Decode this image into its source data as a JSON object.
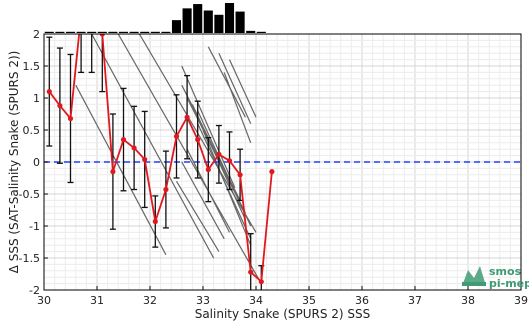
{
  "chart_data": {
    "type": "line",
    "xlabel": "Salinity Snake (SPURS 2) SSS",
    "ylabel": "Δ SSS (SAT-Salinity Snake (SPURS 2))",
    "xlim": [
      30,
      39
    ],
    "ylim": [
      -2,
      2
    ],
    "xticks": [
      "30",
      "31",
      "32",
      "33",
      "34",
      "35",
      "36",
      "37",
      "38",
      "39"
    ],
    "yticks": [
      "2",
      "1.5",
      "1",
      "0.5",
      "0",
      "-0.5",
      "-1",
      "-1.5",
      "-2"
    ],
    "grid": true,
    "zero_line": {
      "y": 0,
      "color": "#1f3fff",
      "style": "dashed"
    },
    "series": [
      {
        "color": "#e0191e",
        "points": [
          {
            "x": 30.1,
            "y": 1.1,
            "err": 0.85
          },
          {
            "x": 30.3,
            "y": 0.88,
            "err": 0.9
          },
          {
            "x": 30.5,
            "y": 0.68,
            "err": 1.0
          },
          {
            "x": 30.7,
            "y": 2.3,
            "err": 0.9
          },
          {
            "x": 30.9,
            "y": 2.3,
            "err": 0.9
          },
          {
            "x": 31.1,
            "y": 2.0,
            "err": 0.9
          },
          {
            "x": 31.3,
            "y": -0.15,
            "err": 0.9
          },
          {
            "x": 31.5,
            "y": 0.35,
            "err": 0.8
          },
          {
            "x": 31.7,
            "y": 0.22,
            "err": 0.65
          },
          {
            "x": 31.9,
            "y": 0.04,
            "err": 0.75
          },
          {
            "x": 32.1,
            "y": -0.93,
            "err": 0.4
          },
          {
            "x": 32.3,
            "y": -0.43,
            "err": 0.6
          },
          {
            "x": 32.5,
            "y": 0.4,
            "err": 0.65
          },
          {
            "x": 32.7,
            "y": 0.7,
            "err": 0.65
          },
          {
            "x": 32.9,
            "y": 0.35,
            "err": 0.6
          },
          {
            "x": 33.1,
            "y": -0.12,
            "err": 0.5
          },
          {
            "x": 33.3,
            "y": 0.12,
            "err": 0.45
          },
          {
            "x": 33.5,
            "y": 0.02,
            "err": 0.45
          },
          {
            "x": 33.7,
            "y": -0.2,
            "err": 0.4
          },
          {
            "x": 33.9,
            "y": -1.72,
            "err": 0.6
          },
          {
            "x": 34.1,
            "y": -1.87,
            "err": 0.25
          },
          {
            "x": 34.3,
            "y": -0.15,
            "err": 0
          }
        ]
      }
    ],
    "histogram": {
      "color": "#000000",
      "bins": [
        {
          "x": 30.1,
          "count": 1
        },
        {
          "x": 30.3,
          "count": 1
        },
        {
          "x": 30.5,
          "count": 1
        },
        {
          "x": 30.7,
          "count": 1
        },
        {
          "x": 30.9,
          "count": 1
        },
        {
          "x": 31.1,
          "count": 1
        },
        {
          "x": 31.3,
          "count": 1
        },
        {
          "x": 31.5,
          "count": 1
        },
        {
          "x": 31.7,
          "count": 1
        },
        {
          "x": 31.9,
          "count": 1
        },
        {
          "x": 32.1,
          "count": 1
        },
        {
          "x": 32.3,
          "count": 1
        },
        {
          "x": 32.5,
          "count": 12
        },
        {
          "x": 32.7,
          "count": 23
        },
        {
          "x": 32.9,
          "count": 27
        },
        {
          "x": 33.1,
          "count": 21
        },
        {
          "x": 33.3,
          "count": 17
        },
        {
          "x": 33.5,
          "count": 28
        },
        {
          "x": 33.7,
          "count": 20
        },
        {
          "x": 33.9,
          "count": 2
        },
        {
          "x": 34.1,
          "count": 1
        }
      ]
    },
    "scatter_lines": {
      "color": "#666666",
      "segments": [
        [
          30.6,
          1.2,
          32.3,
          -1.45
        ],
        [
          30.9,
          2.0,
          33.2,
          -1.5
        ],
        [
          31.4,
          2.0,
          34.1,
          -1.9
        ],
        [
          31.8,
          2.0,
          34.0,
          -1.1
        ],
        [
          32.6,
          1.5,
          33.6,
          -0.4
        ],
        [
          32.6,
          1.2,
          33.7,
          -0.6
        ],
        [
          32.7,
          1.0,
          33.8,
          -0.8
        ],
        [
          32.8,
          0.9,
          33.8,
          -0.9
        ],
        [
          32.9,
          0.8,
          33.9,
          -1.0
        ],
        [
          32.9,
          0.6,
          33.9,
          -1.2
        ],
        [
          33.0,
          0.5,
          33.9,
          -1.3
        ],
        [
          32.7,
          0.2,
          33.5,
          -1.1
        ],
        [
          32.6,
          0.0,
          33.4,
          -1.2
        ],
        [
          32.5,
          -0.3,
          33.3,
          -1.4
        ],
        [
          33.1,
          1.8,
          33.8,
          0.7
        ],
        [
          33.3,
          1.7,
          33.9,
          0.6
        ],
        [
          33.4,
          1.4,
          33.9,
          0.3
        ],
        [
          33.5,
          1.6,
          34.0,
          0.7
        ]
      ]
    }
  },
  "logo": {
    "line1": "smos",
    "line2": "pi-mep",
    "color": "#3f9b74"
  }
}
